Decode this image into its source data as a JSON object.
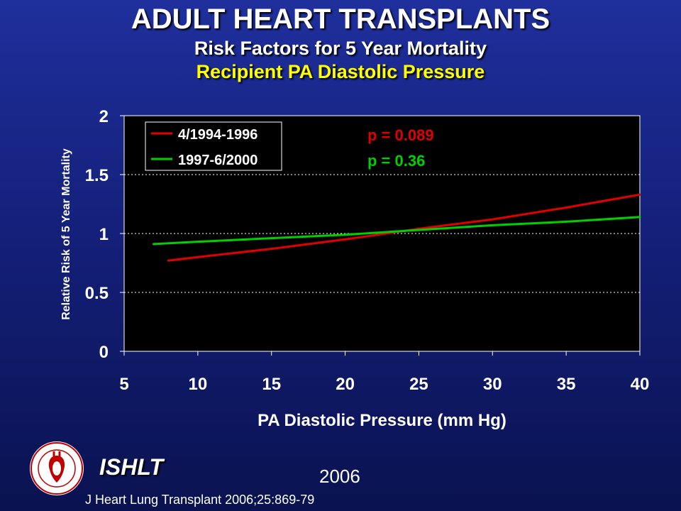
{
  "header": {
    "title": "ADULT HEART TRANSPLANTS",
    "subtitle": "Risk Factors for 5 Year Mortality",
    "subtitle2": "Recipient PA Diastolic Pressure"
  },
  "chart_data": {
    "type": "line",
    "xlabel": "PA Diastolic Pressure (mm Hg)",
    "ylabel": "Relative Risk of 5 Year Mortality",
    "xlim": [
      5,
      40
    ],
    "ylim": [
      0,
      2
    ],
    "xticks": [
      5,
      10,
      15,
      20,
      25,
      30,
      35,
      40
    ],
    "yticks": [
      0,
      0.5,
      1,
      1.5,
      2
    ],
    "ytick_labels": [
      "0",
      "0.5",
      "1",
      "1.5",
      "2"
    ],
    "grid": "horizontal-dotted",
    "legend_position": "top-left",
    "series": [
      {
        "name": "4/1994-1996",
        "color": "#e00000",
        "p_label": "p = 0.089",
        "x": [
          8,
          10,
          15,
          20,
          25,
          30,
          35,
          40
        ],
        "y": [
          0.77,
          0.8,
          0.87,
          0.95,
          1.04,
          1.12,
          1.22,
          1.33
        ]
      },
      {
        "name": "1997-6/2000",
        "color": "#00d000",
        "p_label": "p = 0.36",
        "x": [
          7,
          10,
          15,
          20,
          25,
          30,
          35,
          40
        ],
        "y": [
          0.91,
          0.93,
          0.96,
          0.99,
          1.03,
          1.07,
          1.1,
          1.14
        ]
      }
    ]
  },
  "footer": {
    "org": "ISHLT",
    "year": "2006",
    "citation": "J Heart Lung Transplant 2006;25:869-79",
    "logo_icon": "ishlt-seal-icon"
  }
}
